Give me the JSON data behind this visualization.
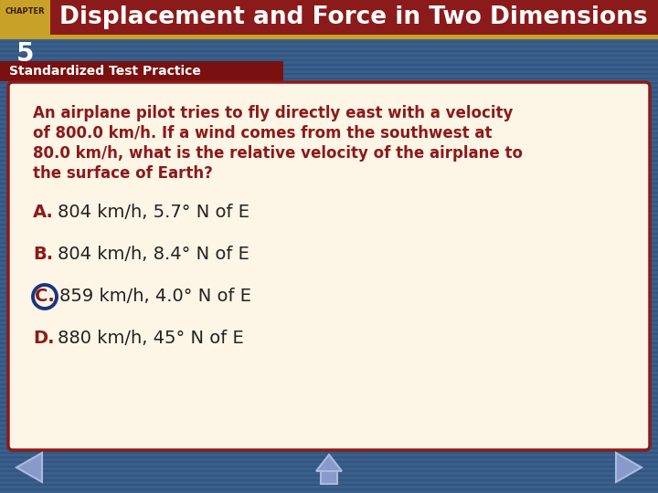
{
  "chapter_label": "CHAPTER",
  "chapter_num": "5",
  "title": "Displacement and Force in Two Dimensions",
  "section_label": "Standardized Test Practice",
  "question_lines": [
    "An airplane pilot tries to fly directly east with a velocity",
    "of 800.0 km/h. If a wind comes from the southwest at",
    "80.0 km/h, what is the relative velocity of the airplane to",
    "the surface of Earth?"
  ],
  "answers": [
    {
      "letter": "A.",
      "text": "804 km/h, 5.7° N of E",
      "correct": false
    },
    {
      "letter": "B.",
      "text": "804 km/h, 8.4° N of E",
      "correct": false
    },
    {
      "letter": "C.",
      "text": "859 km/h, 4.0° N of E",
      "correct": true
    },
    {
      "letter": "D.",
      "text": "880 km/h, 45° N of E",
      "correct": false
    }
  ],
  "bg_color": "#3a5f8a",
  "header_bg": "#8b1a1a",
  "header_stripe_color": "#c8a228",
  "chapter_box_color": "#c8a228",
  "section_bar_bg": "#7a1010",
  "section_bar_width": 310,
  "card_bg": "#fdf5e6",
  "card_border": "#8b1a1a",
  "question_color": "#8b1a1a",
  "answer_letter_color": "#8b1a1a",
  "answer_text_color": "#222222",
  "correct_circle_color": "#1a3580",
  "correct_letter_color": "#8b1a1a",
  "title_color": "#ffffff",
  "chapter_label_color": "#3a1a00",
  "section_label_color": "#ffffff",
  "nav_arrow_color": "#8899cc",
  "nav_arrow_edge": "#aabbdd"
}
